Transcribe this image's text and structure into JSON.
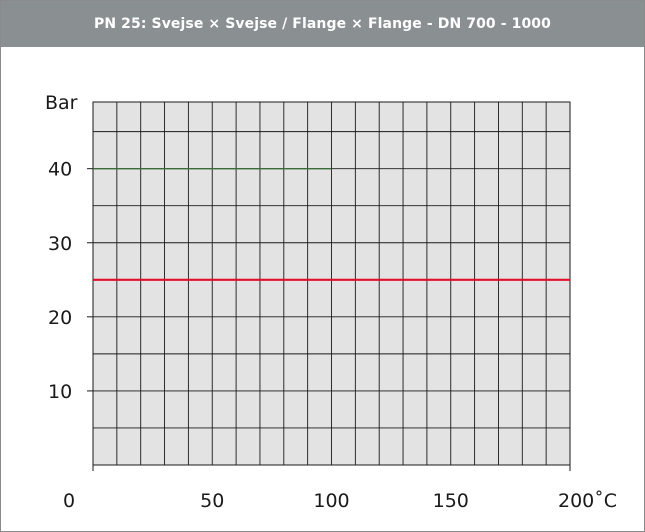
{
  "chart_data": {
    "type": "line",
    "title": "PN 25:  Svejse × Svejse / Flange × Flange - DN 700 - 1000",
    "ylabel": "Bar",
    "xlabel": "",
    "x_unit": "˚C",
    "xlim": [
      0,
      200
    ],
    "ylim": [
      0,
      49
    ],
    "grid": true,
    "x_gridline_step": 10,
    "y_gridline_step": 5,
    "x_ticks": [
      {
        "value": 0,
        "label": "0"
      },
      {
        "value": 50,
        "label": "50"
      },
      {
        "value": 100,
        "label": "100"
      },
      {
        "value": 150,
        "label": "150"
      },
      {
        "value": 200,
        "label": "200˚C"
      }
    ],
    "y_ticks": [
      {
        "value": 10,
        "label": "10"
      },
      {
        "value": 20,
        "label": "20"
      },
      {
        "value": 30,
        "label": "30"
      },
      {
        "value": 40,
        "label": "40"
      }
    ],
    "series": [
      {
        "x": [
          0,
          100
        ],
        "y": [
          40,
          40
        ],
        "color": "#3a6b3a"
      },
      {
        "x": [
          0,
          200
        ],
        "y": [
          25,
          25
        ],
        "color": "#e0102a"
      }
    ],
    "colors": {
      "plot_background": "#e3e3e3",
      "grid": "#1a1a1a",
      "title_bar": "#8a8f92"
    }
  }
}
